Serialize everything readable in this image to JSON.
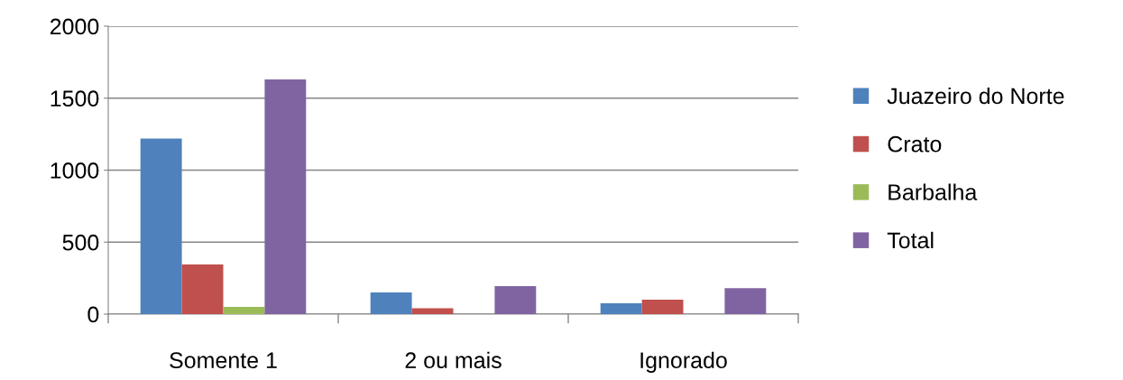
{
  "chart_data": {
    "type": "bar",
    "categories": [
      "Somente 1",
      "2 ou mais",
      "Ignorado"
    ],
    "series": [
      {
        "name": "Juazeiro do Norte",
        "color": "#4f81bd",
        "values": [
          1220,
          150,
          75
        ]
      },
      {
        "name": "Crato",
        "color": "#c0504d",
        "values": [
          345,
          40,
          100
        ]
      },
      {
        "name": "Barbalha",
        "color": "#9bbb59",
        "values": [
          50,
          0,
          0
        ]
      },
      {
        "name": "Total",
        "color": "#8064a2",
        "values": [
          1630,
          195,
          180
        ]
      }
    ],
    "ylim": [
      0,
      2000
    ],
    "yticks": [
      0,
      500,
      1000,
      1500,
      2000
    ],
    "grid": "y",
    "legend": "right"
  }
}
